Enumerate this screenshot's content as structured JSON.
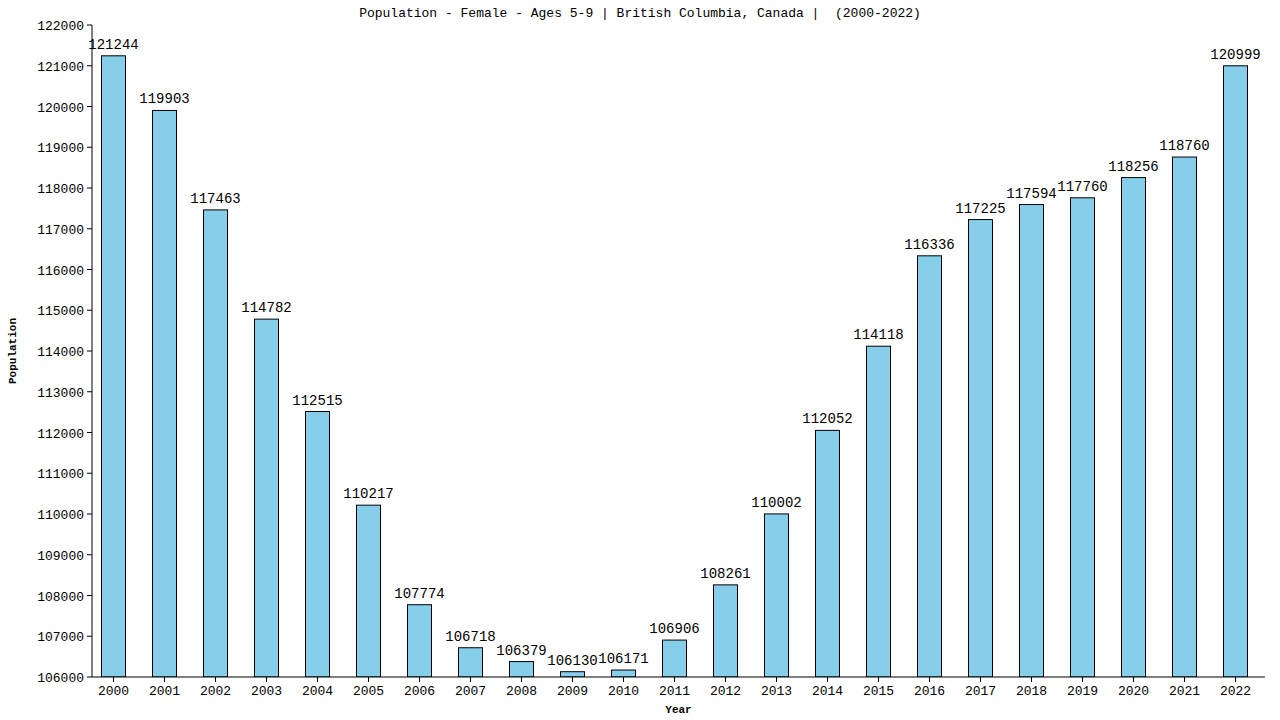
{
  "chart_data": {
    "type": "bar",
    "title": "Population - Female - Ages 5-9 | British Columbia, Canada |  (2000-2022)",
    "x_label": "Year",
    "y_label": "Population",
    "categories": [
      "2000",
      "2001",
      "2002",
      "2003",
      "2004",
      "2005",
      "2006",
      "2007",
      "2008",
      "2009",
      "2010",
      "2011",
      "2012",
      "2013",
      "2014",
      "2015",
      "2016",
      "2017",
      "2018",
      "2019",
      "2020",
      "2021",
      "2022"
    ],
    "values": [
      121244,
      119903,
      117463,
      114782,
      112515,
      110217,
      107774,
      106718,
      106379,
      106130,
      106171,
      106906,
      108261,
      110002,
      112052,
      114118,
      116336,
      117225,
      117594,
      117760,
      118256,
      118760,
      120999
    ],
    "color": "#87ceeb",
    "ylim": [
      106000,
      122000
    ],
    "yticks": [
      106000,
      107000,
      108000,
      109000,
      110000,
      111000,
      112000,
      113000,
      114000,
      115000,
      116000,
      117000,
      118000,
      119000,
      120000,
      121000,
      122000
    ],
    "grid": false,
    "data_labels": true
  }
}
